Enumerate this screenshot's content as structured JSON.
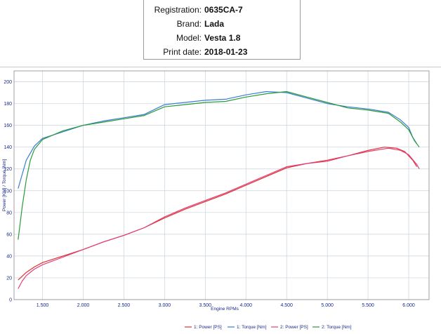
{
  "header": {
    "rows": [
      {
        "label": "Registration:",
        "value": "0635CA-7"
      },
      {
        "label": "Brand:",
        "value": "Lada"
      },
      {
        "label": "Model:",
        "value": "Vesta 1.8"
      },
      {
        "label": "Print date:",
        "value": "2018-01-23"
      }
    ]
  },
  "chart_data": {
    "type": "line",
    "xlabel": "Engine RPMs",
    "ylabel": "Power [KM] / Torque [Nm]",
    "xlim": [
      1150,
      6250
    ],
    "ylim": [
      0,
      210
    ],
    "xticks": [
      {
        "value": 1500,
        "label": "1.500"
      },
      {
        "value": 2000,
        "label": "2.000"
      },
      {
        "value": 2500,
        "label": "2.500"
      },
      {
        "value": 3000,
        "label": "3.000"
      },
      {
        "value": 3500,
        "label": "3.500"
      },
      {
        "value": 4000,
        "label": "4.000"
      },
      {
        "value": 4500,
        "label": "4.500"
      },
      {
        "value": 5000,
        "label": "5.000"
      },
      {
        "value": 5500,
        "label": "5.500"
      },
      {
        "value": 6000,
        "label": "6.000"
      }
    ],
    "yticks": [
      0,
      20,
      40,
      60,
      80,
      100,
      120,
      140,
      160,
      180,
      200
    ],
    "grid": true,
    "legend_position": "bottom-center",
    "series": [
      {
        "name": "1: Power [PS]",
        "color": "#e03030",
        "x": [
          1200,
          1300,
          1400,
          1500,
          1750,
          2000,
          2250,
          2500,
          2750,
          3000,
          3250,
          3500,
          3750,
          4000,
          4250,
          4500,
          4750,
          5000,
          5250,
          5500,
          5700,
          5850,
          5950,
          6050,
          6100
        ],
        "y": [
          18,
          25,
          30,
          34,
          40,
          46,
          53,
          59,
          66,
          75,
          83,
          90,
          97,
          105,
          113,
          121,
          125,
          128,
          132,
          137,
          140,
          139,
          136,
          128,
          122
        ]
      },
      {
        "name": "1: Torque [Nm]",
        "color": "#3a7fd0",
        "x": [
          1200,
          1250,
          1300,
          1400,
          1500,
          1750,
          2000,
          2250,
          2500,
          2750,
          3000,
          3250,
          3500,
          3750,
          4000,
          4250,
          4500,
          4750,
          5000,
          5250,
          5500,
          5750,
          5900,
          6000,
          6050,
          6100
        ],
        "y": [
          102,
          115,
          128,
          141,
          148,
          154,
          160,
          164,
          167,
          170,
          179,
          181,
          183,
          184,
          188,
          191,
          190,
          185,
          180,
          177,
          175,
          172,
          165,
          158,
          149,
          143
        ]
      },
      {
        "name": "2: Power [PS]",
        "color": "#e0407a",
        "x": [
          1200,
          1250,
          1300,
          1400,
          1500,
          1750,
          2000,
          2250,
          2500,
          2750,
          3000,
          3250,
          3500,
          3750,
          4000,
          4250,
          4500,
          4750,
          5000,
          5250,
          5500,
          5750,
          5900,
          6000,
          6100,
          6130
        ],
        "y": [
          10,
          17,
          22,
          28,
          32,
          39,
          46,
          53,
          59,
          66,
          76,
          84,
          91,
          98,
          106,
          114,
          122,
          125,
          127,
          132,
          136,
          139,
          137,
          133,
          124,
          120
        ]
      },
      {
        "name": "2: Torque [Nm]",
        "color": "#2a9a3a",
        "x": [
          1200,
          1250,
          1300,
          1350,
          1400,
          1500,
          1750,
          2000,
          2250,
          2500,
          2750,
          3000,
          3250,
          3500,
          3750,
          4000,
          4250,
          4500,
          4750,
          5000,
          5250,
          5500,
          5750,
          5900,
          6000,
          6070,
          6130
        ],
        "y": [
          55,
          85,
          110,
          128,
          138,
          147,
          155,
          160,
          163,
          166,
          169,
          177,
          179,
          181,
          182,
          186,
          189,
          191,
          186,
          181,
          176,
          174,
          171,
          163,
          156,
          146,
          140
        ]
      }
    ]
  }
}
